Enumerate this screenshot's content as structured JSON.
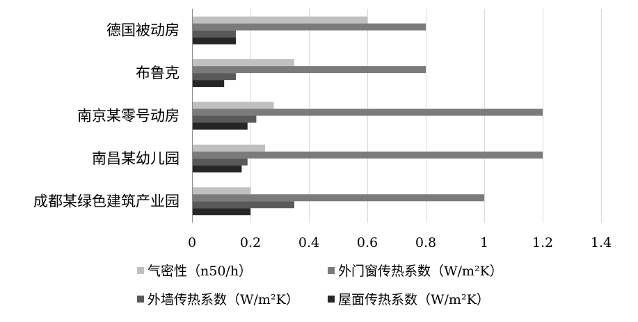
{
  "chart_data": {
    "type": "bar",
    "orientation": "horizontal",
    "categories": [
      "德国被动房",
      "布鲁克",
      "南京某零号动房",
      "南昌某幼儿园",
      "成都某绿色建筑产业园"
    ],
    "series": [
      {
        "name": "气密性（n50/h）",
        "color": "#c0c0c0",
        "values": [
          0.6,
          0.35,
          0.28,
          0.25,
          0.2
        ]
      },
      {
        "name": "外门窗传热系数（W/m²K）",
        "color": "#7b7b7b",
        "values": [
          0.8,
          0.8,
          1.2,
          1.2,
          1.0
        ]
      },
      {
        "name": "外墙传热系数（W/m²K）",
        "color": "#595959",
        "values": [
          0.15,
          0.15,
          0.22,
          0.19,
          0.35
        ]
      },
      {
        "name": "屋面传热系数（W/m²K）",
        "color": "#262626",
        "values": [
          0.15,
          0.11,
          0.19,
          0.17,
          0.2
        ]
      }
    ],
    "xlim": [
      0,
      1.4
    ],
    "xticks": [
      "0",
      "0.2",
      "0.4",
      "0.6",
      "0.8",
      "1",
      "1.2",
      "1.4"
    ],
    "xtick_values": [
      0,
      0.2,
      0.4,
      0.6,
      0.8,
      1.0,
      1.2,
      1.4
    ],
    "grid": "vertical",
    "legend_position": "bottom"
  }
}
